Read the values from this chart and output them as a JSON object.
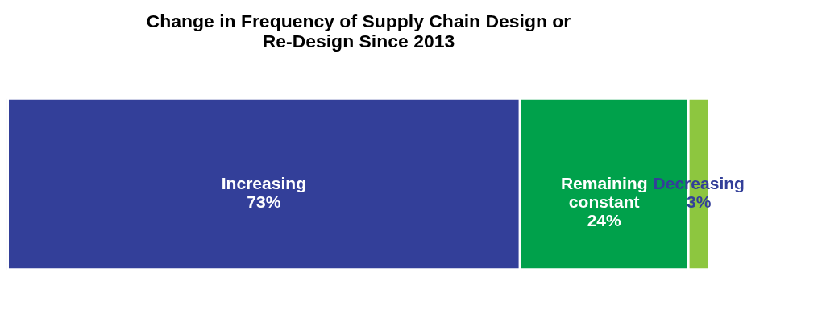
{
  "chart_data": {
    "type": "bar",
    "title": "Change in Frequency of Supply Chain Design or\nRe-Design Since 2013",
    "orientation": "horizontal",
    "stacked": true,
    "categories": [
      null
    ],
    "series": [
      {
        "name": "Increasing",
        "color": "#333f99",
        "values": [
          73
        ],
        "value_labels": [
          "73%"
        ]
      },
      {
        "name": "Remaining constant",
        "color": "#00a14b",
        "values": [
          24
        ],
        "value_labels": [
          "24%"
        ]
      },
      {
        "name": "Decreasing",
        "color": "#8dc63f",
        "values": [
          3
        ],
        "value_labels": [
          "3%"
        ]
      }
    ]
  }
}
